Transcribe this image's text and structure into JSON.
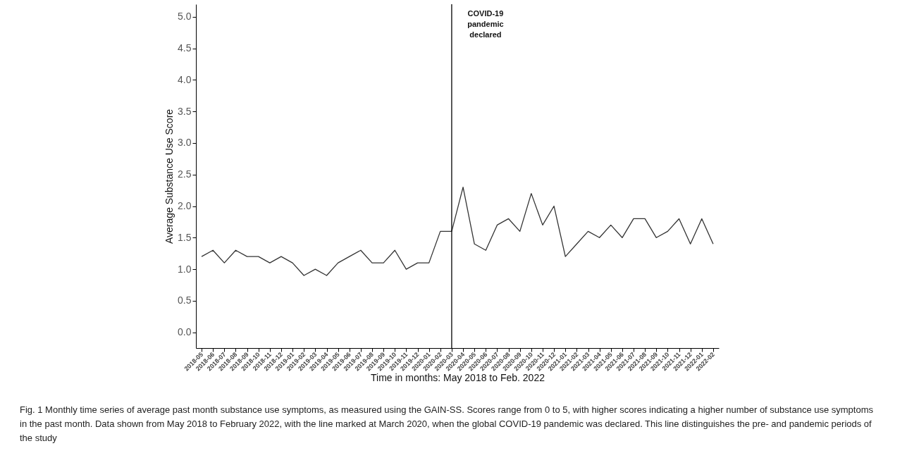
{
  "chart_data": {
    "type": "line",
    "xlabel": "Time in months: May 2018 to Feb. 2022",
    "ylabel": "Average Substance Use Score",
    "categories": [
      "2018-05",
      "2018-06",
      "2018-07",
      "2018-08",
      "2018-09",
      "2018-10",
      "2018-11",
      "2018-12",
      "2019-01",
      "2019-02",
      "2019-03",
      "2019-04",
      "2019-05",
      "2019-06",
      "2019-07",
      "2019-08",
      "2019-09",
      "2019-10",
      "2019-11",
      "2019-12",
      "2020-01",
      "2020-02",
      "2020-03",
      "2020-04",
      "2020-05",
      "2020-06",
      "2020-07",
      "2020-08",
      "2020-09",
      "2020-10",
      "2020-11",
      "2020-12",
      "2021-01",
      "2021-02",
      "2021-03",
      "2021-04",
      "2021-05",
      "2021-06",
      "2021-07",
      "2021-08",
      "2021-09",
      "2021-10",
      "2021-11",
      "2021-12",
      "2022-01",
      "2022-02"
    ],
    "series": [
      {
        "color": "#333333",
        "values": [
          1.2,
          1.3,
          1.1,
          1.3,
          1.2,
          1.2,
          1.1,
          1.2,
          1.1,
          0.9,
          1.0,
          0.9,
          1.1,
          1.2,
          1.3,
          1.1,
          1.1,
          1.3,
          1.0,
          1.1,
          1.1,
          1.6,
          1.6,
          2.3,
          1.4,
          1.3,
          1.7,
          1.8,
          1.6,
          2.2,
          1.7,
          2.0,
          1.2,
          1.4,
          1.6,
          1.5,
          1.7,
          1.5,
          1.8,
          1.8,
          1.5,
          1.6,
          1.8,
          1.4,
          1.8,
          1.4
        ]
      }
    ],
    "ylim": [
      -0.25,
      5.2
    ],
    "yticks": [
      {
        "value": 0,
        "label": "0.0"
      },
      {
        "value": 0.5,
        "label": "0.5"
      },
      {
        "value": 1,
        "label": "1.0"
      },
      {
        "value": 1.5,
        "label": "1.5"
      },
      {
        "value": 2,
        "label": "2.0"
      },
      {
        "value": 2.5,
        "label": "2.5"
      },
      {
        "value": 3,
        "label": "3.0"
      },
      {
        "value": 3.5,
        "label": "3.5"
      },
      {
        "value": 4,
        "label": "4.0"
      },
      {
        "value": 4.5,
        "label": "4.5"
      },
      {
        "value": 5,
        "label": "5.0"
      }
    ],
    "ref_lines": [
      {
        "axis": "x",
        "value": "2020-03",
        "label": "COVID-19 pandemic declared",
        "color": "#000000"
      }
    ],
    "grid": false,
    "annotations": [
      "Fig. 1  Monthly time series of average past month substance use symptoms, as measured using the GAIN-SS. Scores range from 0 to 5, with higher scores indicating a higher number of substance use symptoms in the past month. Data shown from May 2018 to February 2022, with the line marked at March 2020, when the global COVID-19 pandemic was declared. This line distinguishes the pre- and pandemic periods of the study"
    ]
  }
}
